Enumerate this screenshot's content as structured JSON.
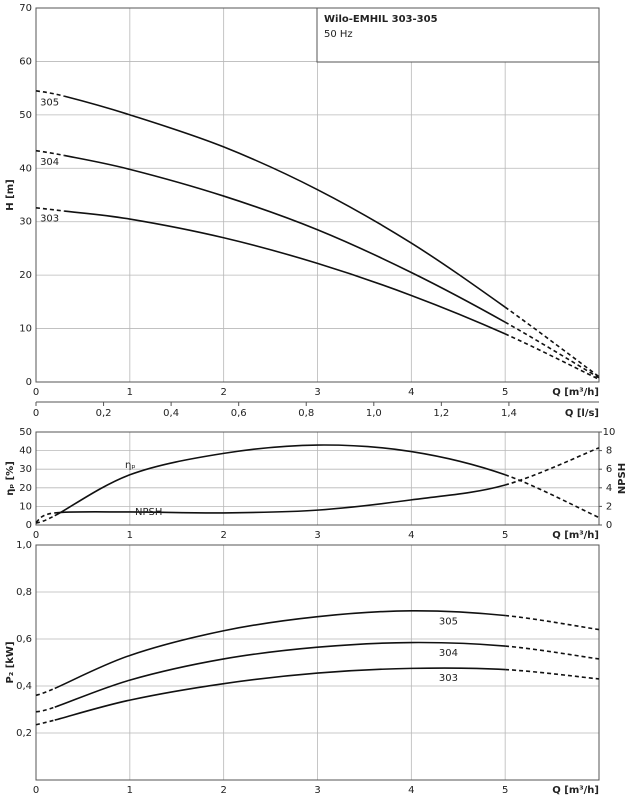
{
  "chart_data": [
    {
      "type": "line",
      "title": "Wilo-EMHIL 303-305",
      "subtitle": "50 Hz",
      "xlabel": "Q [m³/h]",
      "ylabel": "H [m]",
      "x2label": "Q [l/s]",
      "x": [
        0,
        0.3,
        1,
        2,
        3,
        4,
        5,
        6
      ],
      "xlim": [
        0,
        6
      ],
      "xticks": [
        0,
        1,
        2,
        3,
        4,
        5
      ],
      "x2lim": [
        0,
        1.6667
      ],
      "x2ticks": [
        0,
        {
          "value": 0.2,
          "label": "0,2"
        },
        {
          "value": 0.4,
          "label": "0,4"
        },
        {
          "value": 0.6,
          "label": "0,6"
        },
        {
          "value": 0.8,
          "label": "0,8"
        },
        {
          "value": 1.0,
          "label": "1,0"
        },
        {
          "value": 1.2,
          "label": "1,2"
        },
        {
          "value": 1.4,
          "label": "1,4"
        }
      ],
      "ylim": [
        0,
        70
      ],
      "yticks": [
        0,
        10,
        20,
        30,
        40,
        50,
        60,
        70
      ],
      "grid": true,
      "solid_range": [
        0.3,
        5
      ],
      "series": [
        {
          "name": "305",
          "color": "#111111",
          "values": [
            54.5,
            53.5,
            50,
            44,
            36,
            26,
            14,
            1
          ]
        },
        {
          "name": "304",
          "color": "#111111",
          "values": [
            43.3,
            42.4,
            39.8,
            34.8,
            28.5,
            20.5,
            11.2,
            0.8
          ]
        },
        {
          "name": "303",
          "color": "#111111",
          "values": [
            32.6,
            32.0,
            30.5,
            27,
            22.2,
            16.2,
            9,
            0.5
          ]
        }
      ]
    },
    {
      "type": "line",
      "xlabel": "Q [m³/h]",
      "ylabel": "ηₚ [%]",
      "y2label": "NPSH",
      "x": [
        0,
        0.2,
        1,
        2,
        3,
        4,
        5,
        6
      ],
      "xlim": [
        0,
        6
      ],
      "xticks": [
        0,
        1,
        2,
        3,
        4,
        5
      ],
      "ylim": [
        0,
        50
      ],
      "yticks": [
        0,
        10,
        20,
        30,
        40,
        50
      ],
      "y2lim": [
        0,
        10
      ],
      "y2ticks": [
        0,
        2,
        4,
        6,
        8,
        10
      ],
      "grid": true,
      "solid_range": [
        0.2,
        5
      ],
      "series": [
        {
          "name": "ηₚ",
          "color": "#111111",
          "values": [
            1,
            5,
            27,
            38.5,
            43,
            39.5,
            27,
            4
          ]
        },
        {
          "name": "NPSH",
          "color": "#111111",
          "axis": "y2",
          "values": [
            0.3,
            1.3,
            1.4,
            1.3,
            1.6,
            2.7,
            4.3,
            8.3
          ]
        }
      ]
    },
    {
      "type": "line",
      "xlabel": "Q [m³/h]",
      "ylabel": "P₂ [kW]",
      "x": [
        0,
        0.2,
        1,
        2,
        3,
        4,
        5,
        6
      ],
      "xlim": [
        0,
        6
      ],
      "xticks": [
        0,
        1,
        2,
        3,
        4,
        5
      ],
      "ylim": [
        0,
        1.0
      ],
      "yticks": [
        {
          "value": 0.2,
          "label": "0,2"
        },
        {
          "value": 0.4,
          "label": "0,4"
        },
        {
          "value": 0.6,
          "label": "0,6"
        },
        {
          "value": 0.8,
          "label": "0,8"
        },
        {
          "value": 1.0,
          "label": "1,0"
        }
      ],
      "grid": true,
      "solid_range": [
        0.2,
        5
      ],
      "series": [
        {
          "name": "305",
          "color": "#111111",
          "values": [
            0.36,
            0.39,
            0.53,
            0.635,
            0.695,
            0.72,
            0.7,
            0.64
          ]
        },
        {
          "name": "304",
          "color": "#111111",
          "values": [
            0.29,
            0.31,
            0.425,
            0.515,
            0.565,
            0.585,
            0.57,
            0.515
          ]
        },
        {
          "name": "303",
          "color": "#111111",
          "values": [
            0.235,
            0.255,
            0.34,
            0.41,
            0.455,
            0.475,
            0.47,
            0.43
          ]
        }
      ]
    }
  ]
}
